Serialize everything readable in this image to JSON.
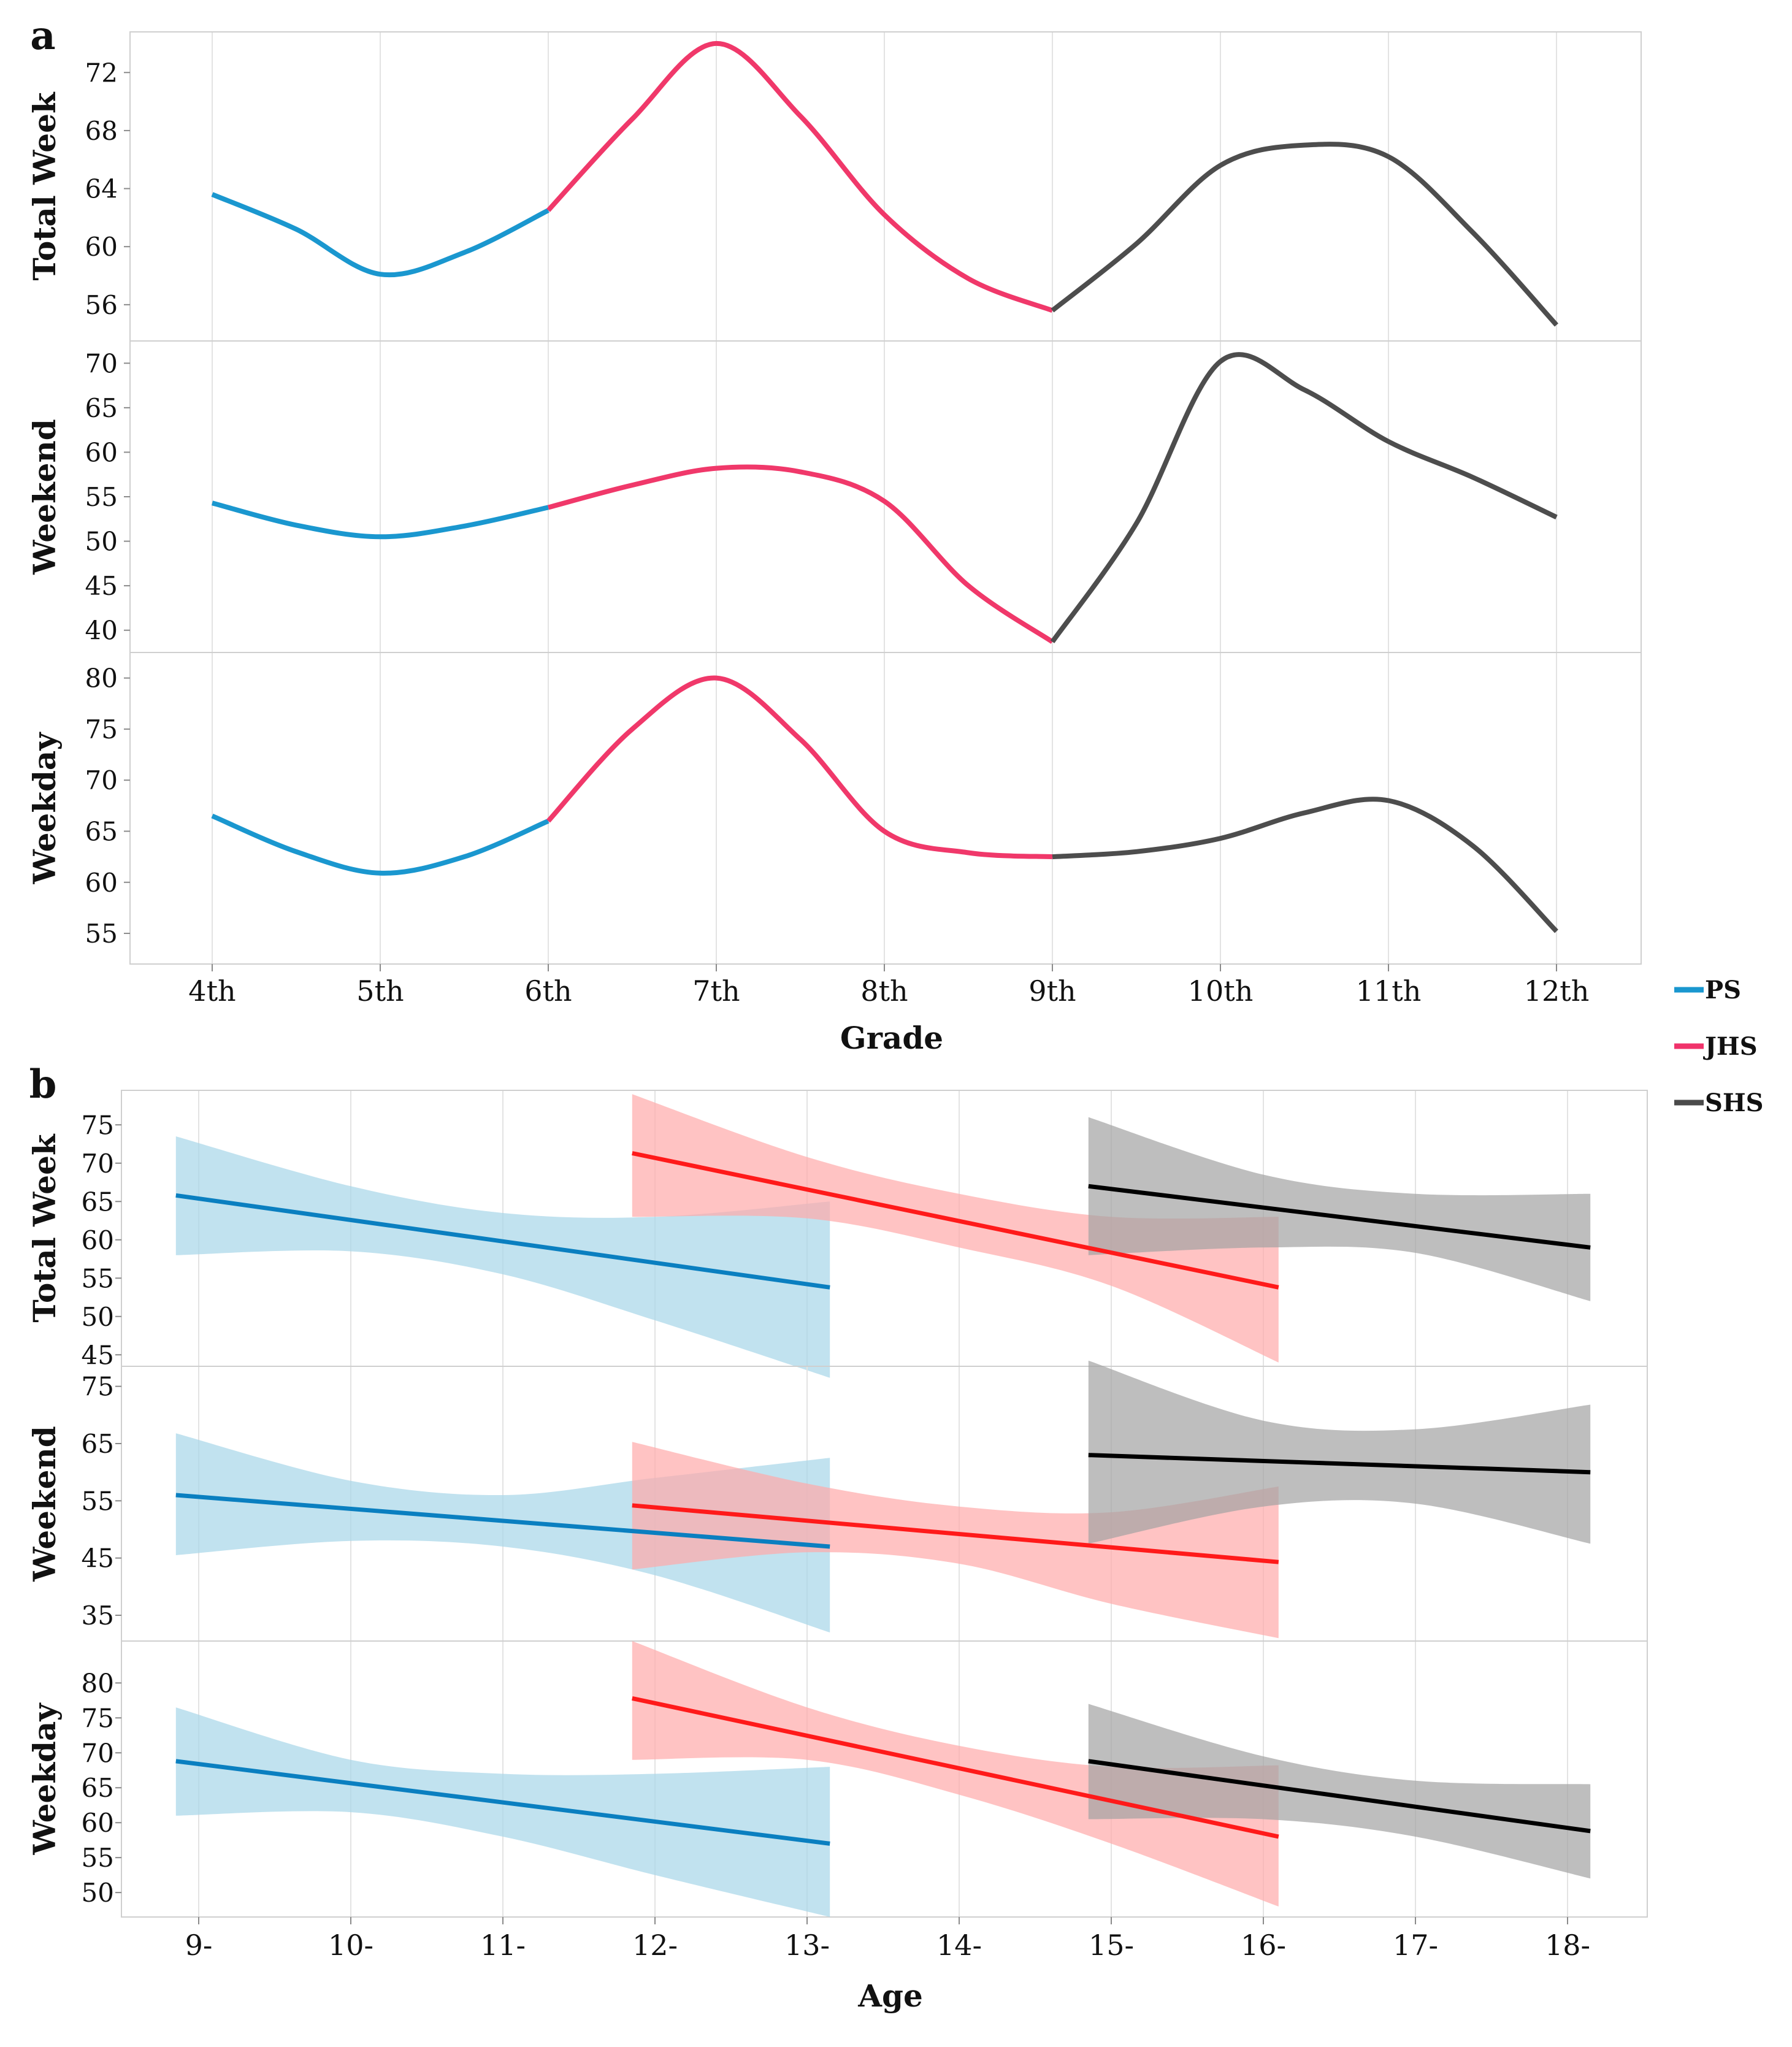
{
  "legend": [
    {
      "key": "PS",
      "label": "PS",
      "color": "#1a97cf"
    },
    {
      "key": "JHS",
      "label": "JHS",
      "color": "#f0336b"
    },
    {
      "key": "SHS",
      "label": "SHS",
      "color": "#4a4a4a"
    }
  ],
  "chart_data": [
    {
      "panel": "a",
      "type": "line",
      "xlabel": "Grade",
      "categories": [
        "4th",
        "5th",
        "6th",
        "7th",
        "8th",
        "9th",
        "10th",
        "11th",
        "12th"
      ],
      "colors": {
        "PS": "#1a97cf",
        "JHS": "#f0386a",
        "SHS": "#4d4d4d"
      },
      "facets": [
        {
          "ylabel": "Total Week",
          "ylim": [
            53.5,
            74.8
          ],
          "yticks": [
            56,
            60,
            64,
            68,
            72
          ],
          "series": [
            {
              "name": "PS",
              "x": [
                0,
                0.5,
                1,
                1.5,
                2
              ],
              "y": [
                63.6,
                61.2,
                58.1,
                59.6,
                62.5
              ]
            },
            {
              "name": "JHS",
              "x": [
                2,
                2.5,
                3,
                3.5,
                4,
                4.5,
                5
              ],
              "y": [
                62.5,
                68.8,
                74.0,
                69.0,
                62.2,
                57.8,
                55.6
              ]
            },
            {
              "name": "SHS",
              "x": [
                5,
                5.5,
                6,
                6.5,
                7,
                7.5,
                8
              ],
              "y": [
                55.6,
                60.2,
                65.6,
                67.0,
                66.2,
                61.0,
                54.6
              ]
            }
          ]
        },
        {
          "ylabel": "Weekend",
          "ylim": [
            37.5,
            72.5
          ],
          "yticks": [
            40,
            45,
            50,
            55,
            60,
            65,
            70
          ],
          "series": [
            {
              "name": "PS",
              "x": [
                0,
                0.5,
                1,
                1.5,
                2
              ],
              "y": [
                54.3,
                51.8,
                50.5,
                51.7,
                53.8
              ]
            },
            {
              "name": "JHS",
              "x": [
                2,
                2.5,
                3,
                3.5,
                4,
                4.5,
                5
              ],
              "y": [
                53.8,
                56.3,
                58.2,
                57.8,
                54.5,
                45.0,
                38.7
              ]
            },
            {
              "name": "SHS",
              "x": [
                5,
                5.5,
                6,
                6.5,
                7,
                7.5,
                8
              ],
              "y": [
                38.7,
                52.0,
                70.2,
                67.0,
                61.2,
                57.2,
                52.7
              ]
            }
          ]
        },
        {
          "ylabel": "Weekday",
          "ylim": [
            52.0,
            82.5
          ],
          "yticks": [
            55,
            60,
            65,
            70,
            75,
            80
          ],
          "series": [
            {
              "name": "PS",
              "x": [
                0,
                0.5,
                1,
                1.5,
                2
              ],
              "y": [
                66.5,
                63.0,
                60.9,
                62.5,
                66.0
              ]
            },
            {
              "name": "JHS",
              "x": [
                2,
                2.5,
                3,
                3.5,
                4,
                4.5,
                5
              ],
              "y": [
                66.0,
                75.0,
                80.0,
                74.0,
                65.0,
                62.9,
                62.5
              ]
            },
            {
              "name": "SHS",
              "x": [
                5,
                5.5,
                6,
                6.5,
                7,
                7.5,
                8
              ],
              "y": [
                62.5,
                63.0,
                64.3,
                66.8,
                68.0,
                63.6,
                55.2
              ]
            }
          ]
        }
      ]
    },
    {
      "panel": "b",
      "type": "line",
      "xlabel": "Age",
      "categories": [
        "9-",
        "10-",
        "11-",
        "12-",
        "13-",
        "14-",
        "15-",
        "16-",
        "17-",
        "18-"
      ],
      "colors": {
        "PS": "#0a7fc0",
        "JHS": "#ff1a1a",
        "SHS": "#000000"
      },
      "band_colors": {
        "PS": "#a7d6e8",
        "JHS": "#ffaaaa",
        "SHS": "#a3a3a3"
      },
      "facets": [
        {
          "ylabel": "Total Week",
          "ylim": [
            43.5,
            79.5
          ],
          "yticks": [
            45,
            50,
            55,
            60,
            65,
            70,
            75
          ],
          "series": [
            {
              "name": "PS",
              "x": [
                -0.15,
                4.15
              ],
              "y": [
                65.8,
                53.8
              ],
              "band_x": [
                -0.15,
                1.0,
                2.0,
                3.0,
                4.15
              ],
              "band_lo": [
                58.0,
                58.5,
                55.5,
                49.5,
                42.0
              ],
              "band_hi": [
                73.5,
                67.0,
                63.5,
                63.0,
                65.0
              ]
            },
            {
              "name": "JHS",
              "x": [
                2.85,
                7.1
              ],
              "y": [
                71.3,
                53.8
              ],
              "band_x": [
                2.85,
                4.0,
                5.0,
                6.0,
                7.1
              ],
              "band_lo": [
                63.0,
                62.8,
                59.0,
                54.0,
                44.0
              ],
              "band_hi": [
                79.0,
                70.8,
                66.0,
                63.0,
                63.0
              ]
            },
            {
              "name": "SHS",
              "x": [
                5.85,
                9.15
              ],
              "y": [
                67.0,
                59.0
              ],
              "band_x": [
                5.85,
                7.0,
                8.0,
                9.15
              ],
              "band_lo": [
                58.0,
                59.0,
                58.3,
                52.0
              ],
              "band_hi": [
                76.0,
                68.5,
                66.0,
                66.0
              ]
            }
          ]
        },
        {
          "ylabel": "Weekend",
          "ylim": [
            30.5,
            78.5
          ],
          "yticks": [
            35,
            45,
            55,
            65,
            75
          ],
          "series": [
            {
              "name": "PS",
              "x": [
                -0.15,
                4.15
              ],
              "y": [
                56.0,
                47.0
              ],
              "band_x": [
                -0.15,
                1.0,
                2.0,
                3.0,
                4.15
              ],
              "band_lo": [
                45.5,
                48.0,
                47.0,
                42.0,
                32.0
              ],
              "band_hi": [
                66.8,
                58.5,
                56.0,
                59.0,
                62.5
              ]
            },
            {
              "name": "JHS",
              "x": [
                2.85,
                7.1
              ],
              "y": [
                54.2,
                44.3
              ],
              "band_x": [
                2.85,
                4.0,
                5.0,
                6.0,
                7.1
              ],
              "band_lo": [
                43.0,
                46.0,
                44.0,
                37.0,
                31.0
              ],
              "band_hi": [
                65.3,
                58.0,
                54.0,
                53.0,
                57.5
              ]
            },
            {
              "name": "SHS",
              "x": [
                5.85,
                9.15
              ],
              "y": [
                63.0,
                60.0
              ],
              "band_x": [
                5.85,
                7.0,
                8.0,
                9.15
              ],
              "band_lo": [
                47.5,
                54.0,
                54.5,
                47.5
              ],
              "band_hi": [
                79.5,
                69.0,
                67.5,
                71.8
              ]
            }
          ]
        },
        {
          "ylabel": "Weekday",
          "ylim": [
            46.5,
            86.0
          ],
          "yticks": [
            50,
            55,
            60,
            65,
            70,
            75,
            80
          ],
          "series": [
            {
              "name": "PS",
              "x": [
                -0.15,
                4.15
              ],
              "y": [
                68.8,
                57.0
              ],
              "band_x": [
                -0.15,
                1.0,
                2.0,
                3.0,
                4.15
              ],
              "band_lo": [
                61.0,
                61.5,
                58.0,
                52.5,
                46.5
              ],
              "band_hi": [
                76.5,
                69.0,
                67.0,
                67.0,
                68.0
              ]
            },
            {
              "name": "JHS",
              "x": [
                2.85,
                7.1
              ],
              "y": [
                77.8,
                58.0
              ],
              "band_x": [
                2.85,
                4.0,
                5.0,
                6.0,
                7.1
              ],
              "band_lo": [
                69.0,
                69.0,
                64.0,
                57.0,
                48.0
              ],
              "band_hi": [
                86.0,
                76.5,
                71.0,
                68.0,
                68.2
              ]
            },
            {
              "name": "SHS",
              "x": [
                5.85,
                9.15
              ],
              "y": [
                68.8,
                58.8
              ],
              "band_x": [
                5.85,
                7.0,
                8.0,
                9.15
              ],
              "band_lo": [
                60.5,
                60.5,
                58.0,
                52.0
              ],
              "band_hi": [
                77.0,
                69.5,
                66.0,
                65.5
              ]
            }
          ]
        }
      ]
    }
  ]
}
